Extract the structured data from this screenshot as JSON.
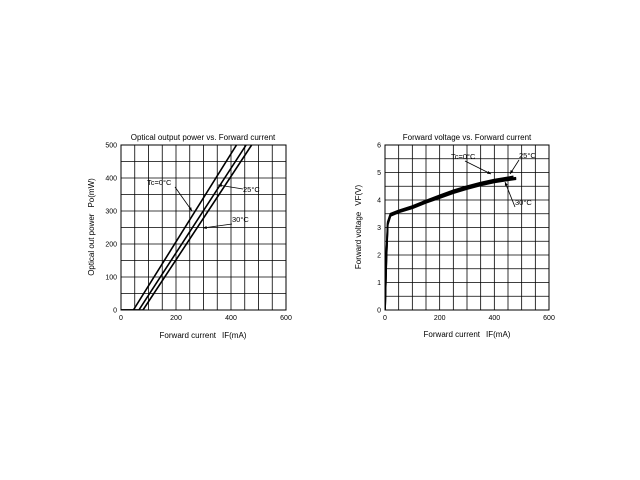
{
  "chart_data": [
    {
      "type": "line",
      "title": "Optical output power vs. Forward current",
      "xlabel": "Forward current",
      "xlabel_unit": "IF(mA)",
      "ylabel": "Optical out power",
      "ylabel_unit": "Po(mW)",
      "xlim": [
        0,
        600
      ],
      "ylim": [
        0,
        500
      ],
      "xticks": [
        0,
        200,
        400,
        600
      ],
      "yticks": [
        0,
        100,
        200,
        300,
        400,
        500
      ],
      "grid": true,
      "series": [
        {
          "name": "Tc=0°C",
          "x": [
            0,
            45,
            420
          ],
          "y": [
            0,
            0,
            500
          ]
        },
        {
          "name": "25°C",
          "x": [
            0,
            65,
            455
          ],
          "y": [
            0,
            0,
            500
          ]
        },
        {
          "name": "30°C",
          "x": [
            0,
            80,
            475
          ],
          "y": [
            0,
            0,
            500
          ]
        }
      ],
      "annotations": [
        {
          "text": "Tc=0°C",
          "series": "Tc=0°C"
        },
        {
          "text": "25°C",
          "series": "25°C"
        },
        {
          "text": "30°C",
          "series": "30°C"
        }
      ]
    },
    {
      "type": "line",
      "title": "Forward voltage vs. Forward current",
      "xlabel": "Forward current",
      "xlabel_unit": "IF(mA)",
      "ylabel": "Forward voltage",
      "ylabel_unit": "VF(V)",
      "xlim": [
        0,
        600
      ],
      "ylim": [
        0,
        6
      ],
      "xticks": [
        0,
        200,
        400,
        600
      ],
      "yticks": [
        0,
        1,
        2,
        3,
        4,
        5,
        6
      ],
      "grid": true,
      "series": [
        {
          "name": "Tc=0°C",
          "x": [
            0,
            5,
            10,
            20,
            50,
            100,
            150,
            200,
            250,
            300,
            350,
            400,
            450,
            470
          ],
          "y": [
            0,
            2.0,
            3.2,
            3.5,
            3.62,
            3.78,
            3.98,
            4.17,
            4.35,
            4.5,
            4.63,
            4.74,
            4.82,
            4.86
          ]
        },
        {
          "name": "25°C",
          "x": [
            0,
            5,
            10,
            20,
            50,
            100,
            150,
            200,
            250,
            300,
            350,
            400,
            450,
            480
          ],
          "y": [
            0,
            1.9,
            3.15,
            3.45,
            3.58,
            3.74,
            3.94,
            4.12,
            4.3,
            4.45,
            4.58,
            4.69,
            4.77,
            4.81
          ]
        },
        {
          "name": "30°C",
          "x": [
            0,
            5,
            10,
            20,
            50,
            100,
            150,
            200,
            250,
            300,
            350,
            400,
            450,
            480
          ],
          "y": [
            0,
            1.85,
            3.1,
            3.42,
            3.55,
            3.7,
            3.9,
            4.07,
            4.25,
            4.4,
            4.53,
            4.64,
            4.72,
            4.76
          ]
        }
      ],
      "annotations": [
        {
          "text": "Tc=0°C",
          "series": "Tc=0°C"
        },
        {
          "text": "25°C",
          "series": "25°C"
        },
        {
          "text": "30°C",
          "series": "30°C"
        }
      ]
    }
  ]
}
